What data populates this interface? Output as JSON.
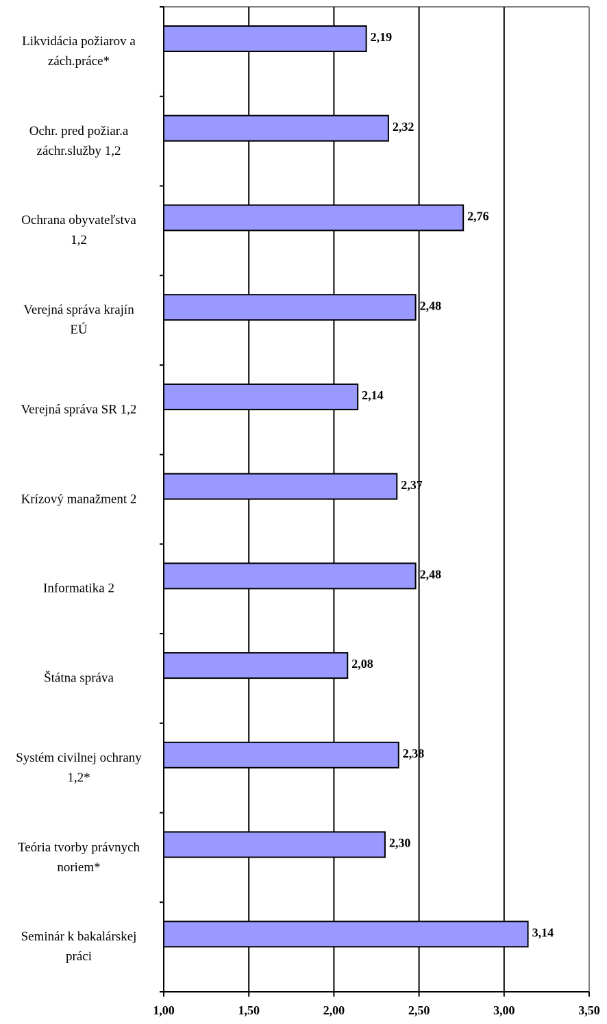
{
  "chart_data": {
    "type": "bar",
    "orientation": "horizontal",
    "categories": [
      "Likvidácia požiarov a\nzách.práce*",
      "Ochr. pred požiar.a\nzáchr.služby 1,2",
      "Ochrana obyvateľstva\n1,2",
      "Verejná správa krajín\nEÚ",
      "Verejná správa SR 1,2",
      "Krízový manažment 2",
      "Informatika 2",
      "Štátna správa",
      "Systém civilnej ochrany\n1,2*",
      "Teória tvorby právnych\nnoriem*",
      "Seminár k bakalárskej\npráci"
    ],
    "values": [
      2.19,
      2.32,
      2.76,
      2.48,
      2.14,
      2.37,
      2.48,
      2.08,
      2.38,
      2.3,
      3.14
    ],
    "value_labels": [
      "2,19",
      "2,32",
      "2,76",
      "2,48",
      "2,14",
      "2,37",
      "2,48",
      "2,08",
      "2,38",
      "2,30",
      "3,14"
    ],
    "color": "#9999ff",
    "xlim": [
      1.0,
      3.5
    ],
    "xticks": [
      {
        "value": 1.0,
        "label": "1,00"
      },
      {
        "value": 1.5,
        "label": "1,50"
      },
      {
        "value": 2.0,
        "label": "2,00"
      },
      {
        "value": 2.5,
        "label": "2,50"
      },
      {
        "value": 3.0,
        "label": "3,00"
      },
      {
        "value": 3.5,
        "label": "3,50"
      }
    ],
    "grid": true
  }
}
